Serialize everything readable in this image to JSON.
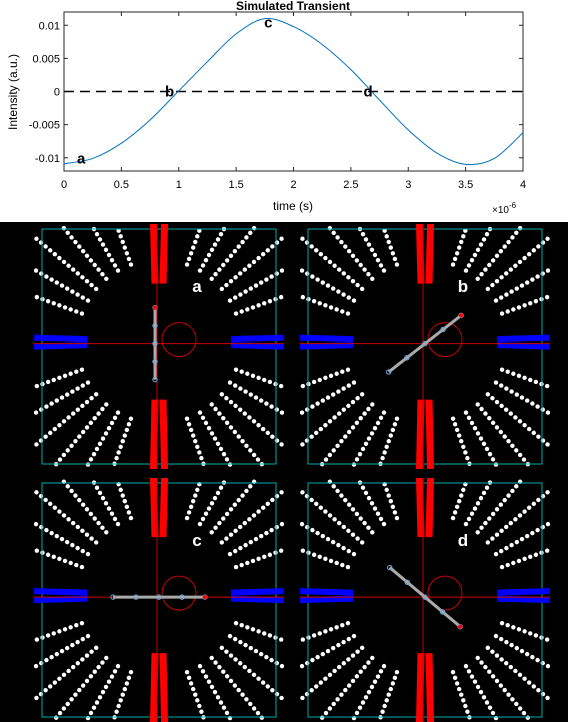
{
  "chart_data": {
    "type": "line",
    "title": "Simulated Transient",
    "xlabel": "time (s)",
    "ylabel": "Intensity (a.u.)",
    "x_exponent_label": "×10",
    "x_exponent_power": "-6",
    "xlim": [
      0,
      4e-06
    ],
    "ylim": [
      -0.012,
      0.012
    ],
    "x_ticks": [
      0,
      0.5,
      1,
      1.5,
      2,
      2.5,
      3,
      3.5,
      4
    ],
    "x_tick_labels": [
      "0",
      "0.5",
      "1",
      "1.5",
      "2",
      "2.5",
      "3",
      "3.5",
      "4"
    ],
    "y_ticks": [
      -0.01,
      -0.005,
      0,
      0.005,
      0.01
    ],
    "y_tick_labels": [
      "-0.01",
      "-0.005",
      "0",
      "0.005",
      "0.01"
    ],
    "grid": false,
    "series": [
      {
        "x": [
          0,
          2.5e-07,
          5e-07,
          7.5e-07,
          1e-06,
          1.25e-06,
          1.5e-06,
          1.75e-06,
          2e-06,
          2.25e-06,
          2.5e-06,
          2.75e-06,
          3e-06,
          3.25e-06,
          3.5e-06,
          3.75e-06,
          4e-06
        ],
        "values": [
          -0.0109,
          -0.0101,
          -0.0078,
          -0.0043,
          0.0001,
          0.0045,
          0.0087,
          0.011,
          0.0098,
          0.0071,
          0.0033,
          -0.0013,
          -0.0058,
          -0.0093,
          -0.011,
          -0.0101,
          -0.0062
        ]
      }
    ],
    "zero_line": 0,
    "annotations": [
      {
        "label": "a",
        "x": 1.5e-07,
        "y": -0.0101
      },
      {
        "label": "b",
        "x": 9.2e-07,
        "y": 0.0
      },
      {
        "label": "c",
        "x": 1.78e-06,
        "y": 0.0104
      },
      {
        "label": "d",
        "x": 2.65e-06,
        "y": 0.0
      }
    ]
  },
  "panels": [
    {
      "label": "a",
      "rod_angle_deg": 90,
      "rod_length": 0.36
    },
    {
      "label": "b",
      "rod_angle_deg": 38,
      "rod_length": 0.46
    },
    {
      "label": "c",
      "rod_angle_deg": 0,
      "rod_length": 0.46
    },
    {
      "label": "d",
      "rod_angle_deg": -40,
      "rod_length": 0.46
    }
  ],
  "colors": {
    "curve": "#0072bd",
    "dashed": "#000000",
    "axes": "#262626",
    "spokes": "#ffffff",
    "red_bars": "#ff0000",
    "blue_bars": "#0000ff",
    "box": "#00aaaa",
    "crosshair": "#cc0000",
    "circle": "#cc0000",
    "rod": "#aaaaaa",
    "rod_marker": "#6fa8dc",
    "panel_bg": "#000000",
    "panel_label": "#ffffff"
  }
}
